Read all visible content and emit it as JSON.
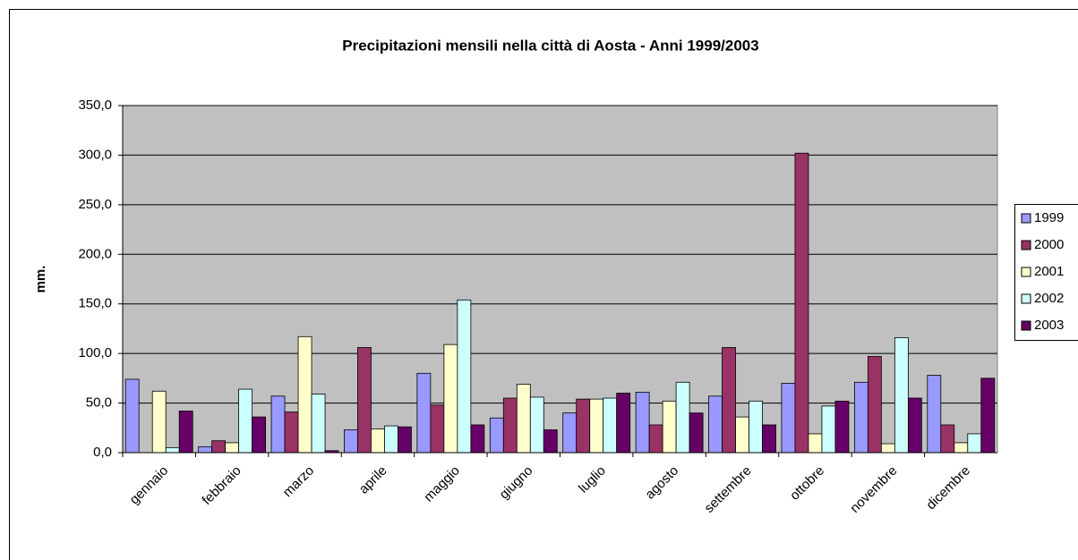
{
  "chart_data": {
    "type": "bar",
    "title": "Precipitazioni mensili nella città di Aosta - Anni 1999/2003",
    "y_label": "mm.",
    "categories": [
      "gennaio",
      "febbraio",
      "marzo",
      "aprile",
      "maggio",
      "giugno",
      "luglio",
      "agosto",
      "settembre",
      "ottobre",
      "novembre",
      "dicembre"
    ],
    "series": [
      {
        "name": "1999",
        "color": "#9999ff",
        "values": [
          74,
          6,
          57,
          23,
          80,
          35,
          40,
          61,
          57,
          70,
          71,
          78
        ]
      },
      {
        "name": "2000",
        "color": "#993366",
        "values": [
          0,
          12,
          41,
          106,
          48,
          55,
          54,
          28,
          106,
          302,
          97,
          28
        ]
      },
      {
        "name": "2001",
        "color": "#ffffcc",
        "values": [
          62,
          10,
          117,
          24,
          109,
          69,
          54,
          52,
          36,
          19,
          9,
          10
        ]
      },
      {
        "name": "2002",
        "color": "#ccffff",
        "values": [
          5,
          64,
          59,
          27,
          154,
          56,
          55,
          71,
          52,
          47,
          116,
          19
        ]
      },
      {
        "name": "2003",
        "color": "#660066",
        "values": [
          42,
          36,
          2,
          26,
          28,
          23,
          60,
          40,
          28,
          52,
          55,
          75
        ]
      }
    ],
    "ylim": [
      0,
      350
    ],
    "yticks": [
      {
        "value": 0,
        "label": "0,0"
      },
      {
        "value": 50,
        "label": "50,0"
      },
      {
        "value": 100,
        "label": "100,0"
      },
      {
        "value": 150,
        "label": "150,0"
      },
      {
        "value": 200,
        "label": "200,0"
      },
      {
        "value": 250,
        "label": "250,0"
      },
      {
        "value": 300,
        "label": "300,0"
      },
      {
        "value": 350,
        "label": "350,0"
      }
    ],
    "grid": true,
    "plot_background": "#c0c0c0",
    "legend": "right"
  }
}
